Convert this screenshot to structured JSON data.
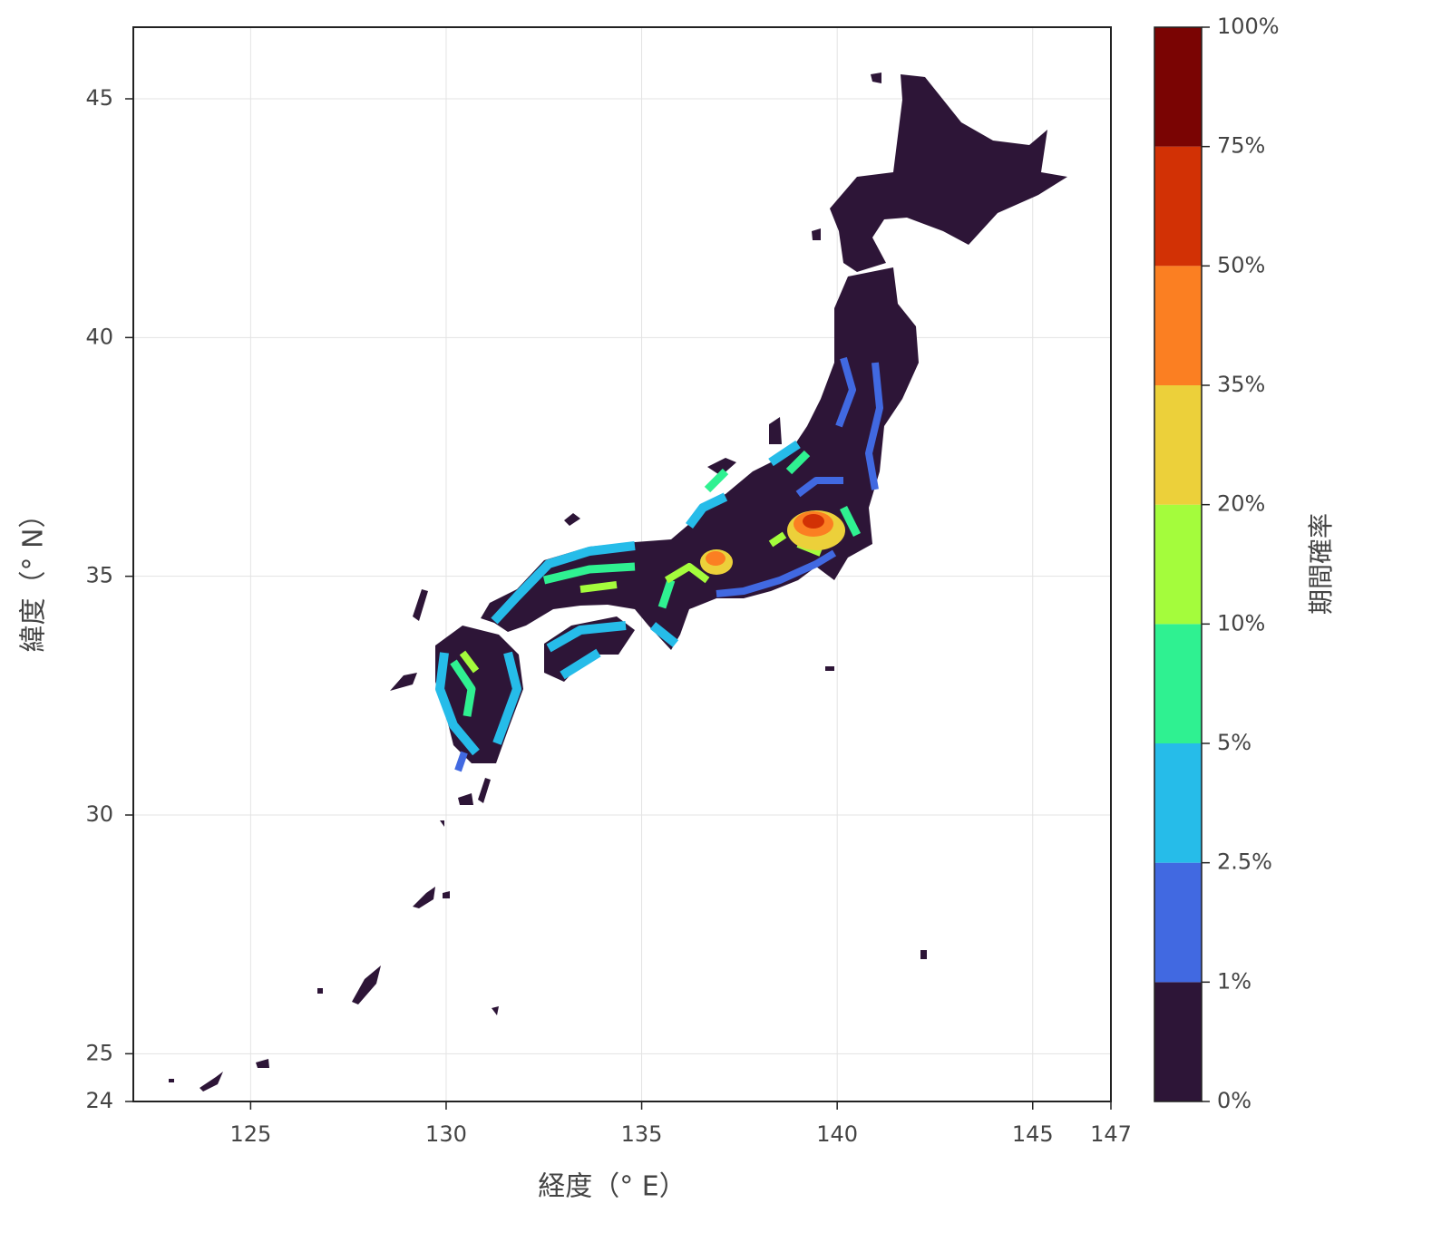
{
  "chart_data": {
    "type": "map",
    "xlabel": "経度（° E）",
    "ylabel": "緯度（° N）",
    "xlim": [
      122,
      147
    ],
    "ylim": [
      24,
      46.5
    ],
    "xticks": [
      125,
      130,
      135,
      140,
      145,
      147
    ],
    "yticks": [
      24,
      25,
      30,
      35,
      40,
      45
    ],
    "grid": true,
    "colorbar": {
      "label": "期間確率",
      "ticks": [
        {
          "value": 0,
          "label": "0%"
        },
        {
          "value": 1,
          "label": "1%"
        },
        {
          "value": 2.5,
          "label": "2.5%"
        },
        {
          "value": 5,
          "label": "5%"
        },
        {
          "value": 10,
          "label": "10%"
        },
        {
          "value": 20,
          "label": "20%"
        },
        {
          "value": 35,
          "label": "35%"
        },
        {
          "value": 50,
          "label": "50%"
        },
        {
          "value": 75,
          "label": "75%"
        },
        {
          "value": 100,
          "label": "100%"
        }
      ],
      "colors": [
        "#2d1537",
        "#4169e1",
        "#26bce9",
        "#2ff191",
        "#a4fc3c",
        "#ecd03a",
        "#fb7f22",
        "#d23105",
        "#7a0403"
      ]
    }
  }
}
